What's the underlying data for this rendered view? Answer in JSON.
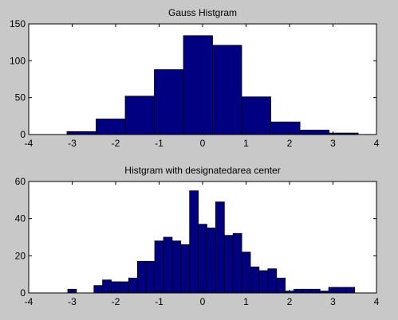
{
  "chart_data": [
    {
      "type": "bar",
      "title": "Gauss Histgram",
      "xlabel": "",
      "ylabel": "",
      "xlim": [
        -4,
        4
      ],
      "ylim": [
        0,
        150
      ],
      "xticks": [
        "-4",
        "-3",
        "-2",
        "-1",
        "0",
        "1",
        "2",
        "3",
        "4"
      ],
      "yticks": [
        "0",
        "50",
        "100",
        "150"
      ],
      "bar_color": "#000080",
      "bins": [
        {
          "x0": -3.12,
          "x1": -2.45,
          "value": 4
        },
        {
          "x0": -2.45,
          "x1": -1.78,
          "value": 21
        },
        {
          "x0": -1.78,
          "x1": -1.11,
          "value": 52
        },
        {
          "x0": -1.11,
          "x1": -0.44,
          "value": 88
        },
        {
          "x0": -0.44,
          "x1": 0.23,
          "value": 134
        },
        {
          "x0": 0.23,
          "x1": 0.9,
          "value": 121
        },
        {
          "x0": 0.9,
          "x1": 1.57,
          "value": 51
        },
        {
          "x0": 1.57,
          "x1": 2.24,
          "value": 17
        },
        {
          "x0": 2.24,
          "x1": 2.91,
          "value": 6
        },
        {
          "x0": 2.91,
          "x1": 3.58,
          "value": 2
        }
      ]
    },
    {
      "type": "bar",
      "title": "Histgram with designatedarea center",
      "xlabel": "",
      "ylabel": "",
      "xlim": [
        -4,
        4
      ],
      "ylim": [
        0,
        60
      ],
      "xticks": [
        "-4",
        "-3",
        "-2",
        "-1",
        "0",
        "1",
        "2",
        "3",
        "4"
      ],
      "yticks": [
        "0",
        "20",
        "40",
        "60"
      ],
      "bar_color": "#000080",
      "bin_width": 0.2,
      "bins": [
        {
          "x": -3.0,
          "value": 2
        },
        {
          "x": -2.4,
          "value": 4
        },
        {
          "x": -2.2,
          "value": 7
        },
        {
          "x": -2.0,
          "value": 6
        },
        {
          "x": -1.8,
          "value": 6
        },
        {
          "x": -1.6,
          "value": 8
        },
        {
          "x": -1.4,
          "value": 17
        },
        {
          "x": -1.2,
          "value": 17
        },
        {
          "x": -1.0,
          "value": 28
        },
        {
          "x": -0.8,
          "value": 30
        },
        {
          "x": -0.6,
          "value": 28
        },
        {
          "x": -0.4,
          "value": 26
        },
        {
          "x": -0.2,
          "value": 55
        },
        {
          "x": 0.0,
          "value": 37
        },
        {
          "x": 0.2,
          "value": 35
        },
        {
          "x": 0.4,
          "value": 49
        },
        {
          "x": 0.6,
          "value": 31
        },
        {
          "x": 0.8,
          "value": 32
        },
        {
          "x": 1.0,
          "value": 22
        },
        {
          "x": 1.2,
          "value": 14
        },
        {
          "x": 1.4,
          "value": 12
        },
        {
          "x": 1.6,
          "value": 13
        },
        {
          "x": 1.8,
          "value": 8
        },
        {
          "x": 2.0,
          "value": 1
        },
        {
          "x": 2.2,
          "value": 2
        },
        {
          "x": 2.4,
          "value": 2
        },
        {
          "x": 2.6,
          "value": 2
        },
        {
          "x": 2.8,
          "value": 1
        },
        {
          "x": 3.0,
          "value": 3
        },
        {
          "x": 3.2,
          "value": 3
        },
        {
          "x": 3.4,
          "value": 3
        }
      ]
    }
  ]
}
